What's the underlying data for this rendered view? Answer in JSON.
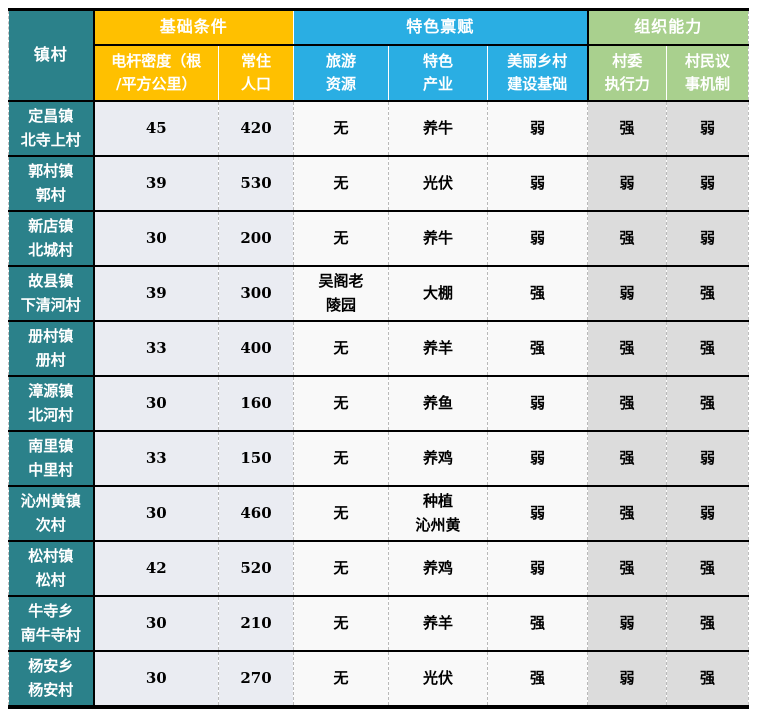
{
  "colors": {
    "village_column_teal": "#2b818a",
    "basic_section_yellow": "#ffc000",
    "feature_section_blue": "#2aaee3",
    "org_section_green": "#a9d08e",
    "basic_cell_bg": "#eaecf2",
    "feature_cell_bg": "#f9f9f9",
    "org_cell_bg": "#dcdcdc",
    "grid_line": "#000000",
    "dashed_line": "#b9b9b9"
  },
  "table": {
    "corner_header": "镇村",
    "groups": [
      {
        "label": "基础条件",
        "section": "basic",
        "col_span": 2
      },
      {
        "label": "特色禀赋",
        "section": "feature",
        "col_span": 3
      },
      {
        "label": "组织能力",
        "section": "org",
        "col_span": 2
      }
    ],
    "sub_headers": [
      {
        "key": "pole_density",
        "label": "电杆密度（根\n/平方公里）",
        "section": "basic"
      },
      {
        "key": "population",
        "label": "常住\n人口",
        "section": "basic"
      },
      {
        "key": "tourism",
        "label": "旅游\n资源",
        "section": "feature"
      },
      {
        "key": "industry",
        "label": "特色\n产业",
        "section": "feature"
      },
      {
        "key": "beautiful_village_base",
        "label": "美丽乡村\n建设基础",
        "section": "feature"
      },
      {
        "key": "committee_execution",
        "label": "村委\n执行力",
        "section": "org"
      },
      {
        "key": "villager_council",
        "label": "村民议\n事机制",
        "section": "org"
      }
    ],
    "rows": [
      {
        "village": "定昌镇\n北寺上村",
        "pole_density": "45",
        "population": "420",
        "tourism": "无",
        "industry": "养牛",
        "beautiful_village_base": "弱",
        "committee_execution": "强",
        "villager_council": "弱"
      },
      {
        "village": "郭村镇\n郭村",
        "pole_density": "39",
        "population": "530",
        "tourism": "无",
        "industry": "光伏",
        "beautiful_village_base": "弱",
        "committee_execution": "弱",
        "villager_council": "弱"
      },
      {
        "village": "新店镇\n北城村",
        "pole_density": "30",
        "population": "200",
        "tourism": "无",
        "industry": "养牛",
        "beautiful_village_base": "弱",
        "committee_execution": "强",
        "villager_council": "弱"
      },
      {
        "village": "故县镇\n下清河村",
        "pole_density": "39",
        "population": "300",
        "tourism": "吴阁老\n陵园",
        "industry": "大棚",
        "beautiful_village_base": "强",
        "committee_execution": "弱",
        "villager_council": "强"
      },
      {
        "village": "册村镇\n册村",
        "pole_density": "33",
        "population": "400",
        "tourism": "无",
        "industry": "养羊",
        "beautiful_village_base": "强",
        "committee_execution": "强",
        "villager_council": "强"
      },
      {
        "village": "漳源镇\n北河村",
        "pole_density": "30",
        "population": "160",
        "tourism": "无",
        "industry": "养鱼",
        "beautiful_village_base": "弱",
        "committee_execution": "强",
        "villager_council": "强"
      },
      {
        "village": "南里镇\n中里村",
        "pole_density": "33",
        "population": "150",
        "tourism": "无",
        "industry": "养鸡",
        "beautiful_village_base": "弱",
        "committee_execution": "强",
        "villager_council": "弱"
      },
      {
        "village": "沁州黄镇\n次村",
        "pole_density": "30",
        "population": "460",
        "tourism": "无",
        "industry": "种植\n沁州黄",
        "beautiful_village_base": "弱",
        "committee_execution": "强",
        "villager_council": "弱"
      },
      {
        "village": "松村镇\n松村",
        "pole_density": "42",
        "population": "520",
        "tourism": "无",
        "industry": "养鸡",
        "beautiful_village_base": "弱",
        "committee_execution": "强",
        "villager_council": "强"
      },
      {
        "village": "牛寺乡\n南牛寺村",
        "pole_density": "30",
        "population": "210",
        "tourism": "无",
        "industry": "养羊",
        "beautiful_village_base": "强",
        "committee_execution": "弱",
        "villager_council": "强"
      },
      {
        "village": "杨安乡\n杨安村",
        "pole_density": "30",
        "population": "270",
        "tourism": "无",
        "industry": "光伏",
        "beautiful_village_base": "强",
        "committee_execution": "弱",
        "villager_council": "强"
      }
    ]
  }
}
